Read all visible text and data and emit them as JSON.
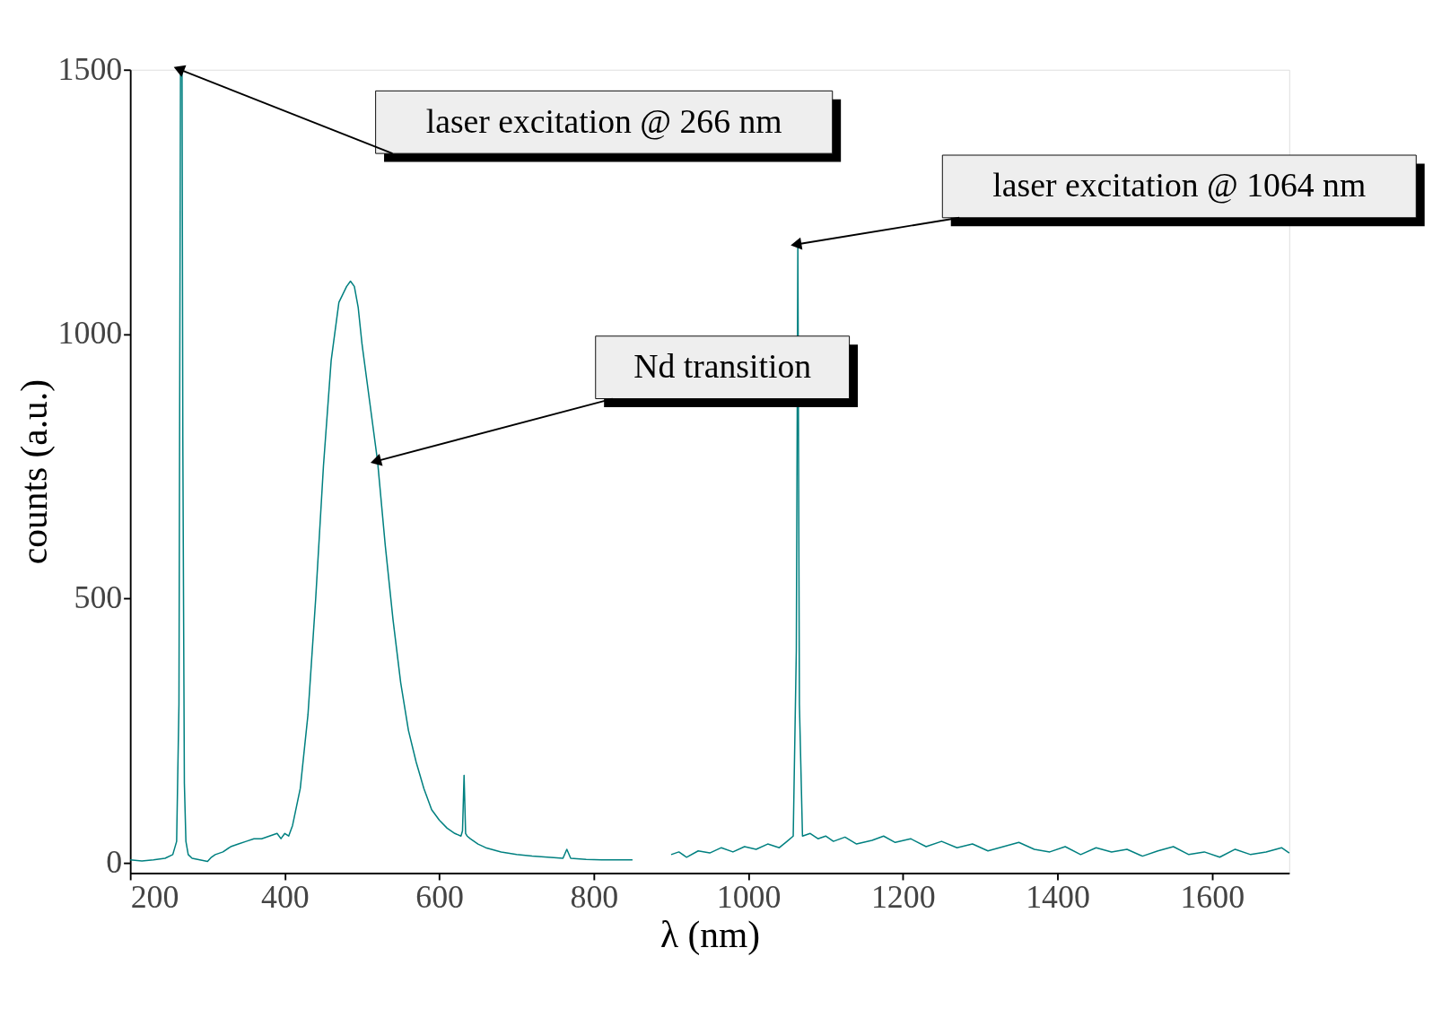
{
  "chart_data": {
    "type": "line",
    "xlabel": "λ (nm)",
    "ylabel": "counts (a.u.)",
    "xlim": [
      200,
      1700
    ],
    "ylim": [
      -20,
      1500
    ],
    "xticks": [
      200,
      400,
      600,
      800,
      1000,
      1200,
      1400,
      1600
    ],
    "yticks": [
      0,
      500,
      1000,
      1500
    ],
    "grid": false,
    "legend": false,
    "marker": "none",
    "line_style": "solid",
    "x": [
      200,
      215,
      230,
      245,
      255,
      260,
      263,
      265,
      267,
      268,
      270,
      272,
      275,
      280,
      290,
      300,
      305,
      310,
      320,
      330,
      340,
      350,
      360,
      370,
      380,
      390,
      395,
      400,
      405,
      410,
      420,
      430,
      440,
      450,
      460,
      470,
      480,
      485,
      490,
      495,
      500,
      510,
      520,
      530,
      540,
      550,
      560,
      570,
      580,
      590,
      600,
      610,
      620,
      628,
      630,
      632,
      634,
      636,
      640,
      650,
      660,
      680,
      700,
      720,
      740,
      760,
      765,
      770,
      790,
      810,
      830,
      850,
      870,
      900,
      910,
      920,
      935,
      950,
      965,
      980,
      995,
      1010,
      1025,
      1040,
      1050,
      1058,
      1062,
      1064,
      1066,
      1070,
      1080,
      1090,
      1100,
      1110,
      1125,
      1140,
      1160,
      1175,
      1190,
      1210,
      1230,
      1250,
      1270,
      1290,
      1310,
      1330,
      1350,
      1370,
      1390,
      1410,
      1430,
      1450,
      1470,
      1490,
      1510,
      1530,
      1550,
      1570,
      1590,
      1610,
      1630,
      1650,
      1670,
      1690,
      1700
    ],
    "series": [
      {
        "color": "#008080",
        "values": [
          5,
          3,
          5,
          8,
          15,
          40,
          300,
          1500,
          1500,
          800,
          150,
          40,
          15,
          8,
          5,
          2,
          10,
          15,
          20,
          30,
          35,
          40,
          45,
          45,
          50,
          55,
          45,
          55,
          50,
          70,
          140,
          280,
          500,
          750,
          950,
          1060,
          1090,
          1100,
          1090,
          1050,
          980,
          870,
          760,
          600,
          460,
          340,
          250,
          190,
          140,
          100,
          80,
          65,
          55,
          50,
          60,
          165,
          55,
          50,
          45,
          35,
          28,
          20,
          15,
          12,
          10,
          8,
          25,
          8,
          6,
          5,
          5,
          5,
          null,
          15,
          20,
          10,
          22,
          18,
          28,
          20,
          30,
          25,
          35,
          28,
          40,
          50,
          400,
          1170,
          300,
          50,
          55,
          45,
          50,
          40,
          48,
          35,
          42,
          50,
          38,
          45,
          30,
          40,
          28,
          35,
          22,
          30,
          38,
          25,
          20,
          30,
          15,
          28,
          20,
          25,
          12,
          22,
          30,
          15,
          20,
          10,
          25,
          15,
          20,
          28,
          18
        ]
      }
    ],
    "annotations": [
      {
        "text": "laser excitation @ 266 nm",
        "x": 265,
        "y": 1500
      },
      {
        "text": "laser excitation @ 1064 nm",
        "x": 1064,
        "y": 1170
      },
      {
        "text": "Nd transition",
        "x": 520,
        "y": 760
      }
    ]
  }
}
